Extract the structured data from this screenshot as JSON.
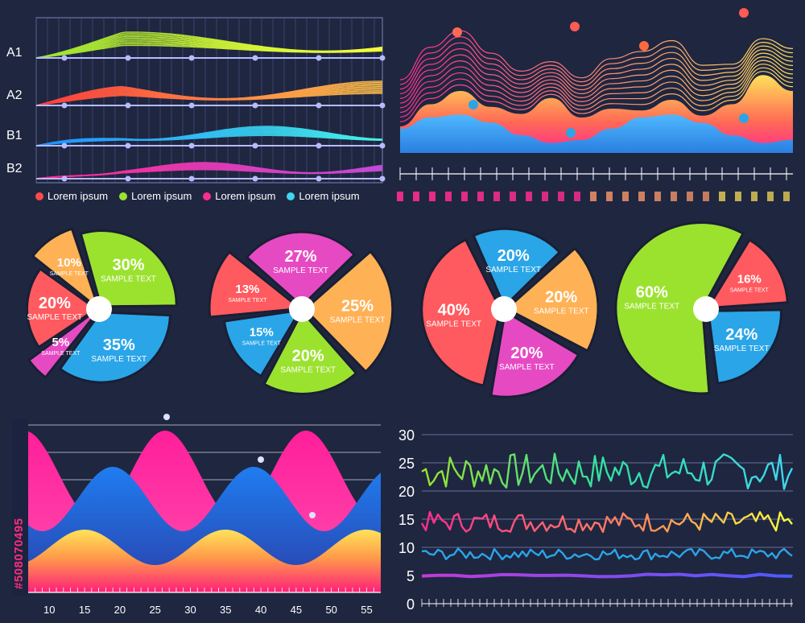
{
  "watermark": "#508070495",
  "colors": {
    "background": "#1f2640",
    "pink": "#ff2d8f",
    "blue": "#2aa5e8",
    "green": "#9be22f",
    "orange": "#ffb155",
    "coral": "#ff5a5f",
    "magenta": "#e64ac3"
  },
  "legend": [
    {
      "label": "Lorem ipsum",
      "color": "#ff4a4a"
    },
    {
      "label": "Lorem ipsum",
      "color": "#9be22f"
    },
    {
      "label": "Lorem ipsum",
      "color": "#ff2d8f"
    },
    {
      "label": "Lorem ipsum",
      "color": "#3fd6ef"
    }
  ],
  "chart_data": [
    {
      "type": "area",
      "title": "",
      "categories": [
        "A1",
        "A2",
        "B1",
        "B2"
      ],
      "grid": true,
      "legend_position": "bottom",
      "series": [
        {
          "name": "Lorem ipsum",
          "color": "#ff4a4a"
        },
        {
          "name": "Lorem ipsum",
          "color": "#9be22f"
        },
        {
          "name": "Lorem ipsum",
          "color": "#ff2d8f"
        },
        {
          "name": "Lorem ipsum",
          "color": "#3fd6ef"
        }
      ]
    },
    {
      "type": "area",
      "title": "",
      "values": [
        30,
        55,
        70,
        52,
        44,
        62,
        40,
        50,
        48,
        60,
        42,
        55,
        88,
        70
      ]
    },
    {
      "type": "pie",
      "slices": [
        {
          "value": 20,
          "pct": "20%",
          "label": "SAMPLE TEXT",
          "color": "#ff5a5f"
        },
        {
          "value": 10,
          "pct": "10%",
          "label": "SAMPLE TEXT",
          "color": "#ffb155"
        },
        {
          "value": 30,
          "pct": "30%",
          "label": "SAMPLE TEXT",
          "color": "#9be22f"
        },
        {
          "value": 35,
          "pct": "35%",
          "label": "SAMPLE TEXT",
          "color": "#2aa5e8"
        },
        {
          "value": 5,
          "pct": "5%",
          "label": "SAMPLE TEXT",
          "color": "#e64ac3"
        }
      ]
    },
    {
      "type": "pie",
      "slices": [
        {
          "value": 27,
          "pct": "27%",
          "label": "SAMPLE TEXT",
          "color": "#e64ac3"
        },
        {
          "value": 25,
          "pct": "25%",
          "label": "SAMPLE TEXT",
          "color": "#ffb155"
        },
        {
          "value": 20,
          "pct": "20%",
          "label": "SAMPLE TEXT",
          "color": "#9be22f"
        },
        {
          "value": 15,
          "pct": "15%",
          "label": "SAMPLE TEXT",
          "color": "#2aa5e8"
        },
        {
          "value": 13,
          "pct": "13%",
          "label": "SAMPLE TEXT",
          "color": "#ff5a5f"
        }
      ]
    },
    {
      "type": "pie",
      "slices": [
        {
          "value": 20,
          "pct": "20%",
          "label": "SAMPLE TEXT",
          "color": "#2aa5e8"
        },
        {
          "value": 20,
          "pct": "20%",
          "label": "SAMPLE TEXT",
          "color": "#ffb155"
        },
        {
          "value": 20,
          "pct": "20%",
          "label": "SAMPLE TEXT",
          "color": "#e64ac3"
        },
        {
          "value": 40,
          "pct": "40%",
          "label": "SAMPLE TEXT",
          "color": "#ff5a5f"
        }
      ]
    },
    {
      "type": "pie",
      "slices": [
        {
          "value": 16,
          "pct": "16%",
          "label": "SAMPLE TEXT",
          "color": "#ff5a5f"
        },
        {
          "value": 24,
          "pct": "24%",
          "label": "SAMPLE TEXT",
          "color": "#2aa5e8"
        },
        {
          "value": 60,
          "pct": "60%",
          "label": "SAMPLE TEXT",
          "color": "#9be22f"
        }
      ]
    },
    {
      "type": "area",
      "title": "",
      "xlim": [
        7,
        57
      ],
      "x_ticks": [
        10,
        15,
        20,
        25,
        30,
        35,
        40,
        45,
        50,
        55
      ],
      "grid": true
    },
    {
      "type": "line",
      "title": "",
      "ylim": [
        0,
        30
      ],
      "y_ticks": [
        0,
        5,
        10,
        15,
        20,
        25,
        30
      ],
      "grid": true,
      "series": [
        {
          "color": "#9be22f",
          "base": 23.5,
          "amp": 3.2
        },
        {
          "color": "#ff3a8a",
          "base": 14.5,
          "amp": 1.8
        },
        {
          "color": "#2aa5e8",
          "base": 8.8,
          "amp": 1.0
        },
        {
          "color": "#9a5bff",
          "base": 5.0,
          "amp": 0.25
        }
      ]
    }
  ]
}
